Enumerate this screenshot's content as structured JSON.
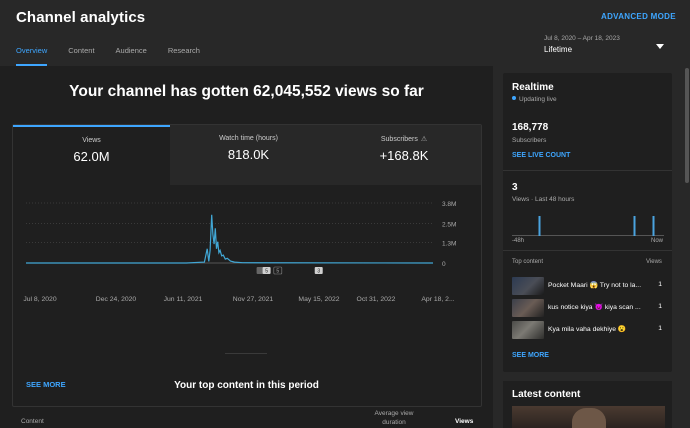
{
  "header": {
    "title": "Channel analytics",
    "advanced_mode": "ADVANCED MODE",
    "tabs": [
      {
        "label": "Overview",
        "active": true
      },
      {
        "label": "Content",
        "active": false
      },
      {
        "label": "Audience",
        "active": false
      },
      {
        "label": "Research",
        "active": false
      }
    ],
    "date_range": "Jul 8, 2020 – Apr 18, 2023",
    "period": "Lifetime"
  },
  "overview": {
    "headline": "Your channel has gotten 62,045,552 views so far",
    "metrics": [
      {
        "label": "Views",
        "value": "62.0M",
        "active": true
      },
      {
        "label": "Watch time (hours)",
        "value": "818.0K",
        "active": false
      },
      {
        "label": "Subscribers",
        "value": "+168.8K",
        "active": false,
        "warning_icon": "⚠"
      }
    ],
    "see_more": "SEE MORE",
    "top_content_title": "Your top content in this period",
    "table_headers": {
      "content": "Content",
      "avg_view_duration_line1": "Average view",
      "avg_view_duration_line2": "duration",
      "views": "Views"
    }
  },
  "chart_data": {
    "type": "line",
    "title": "",
    "x_tick_labels": [
      "Jul 8, 2020",
      "Dec 24, 2020",
      "Jun 11, 2021",
      "Nov 27, 2021",
      "May 15, 2022",
      "Oct 31, 2022",
      "Apr 18, 2..."
    ],
    "y_tick_labels": [
      "3.8M",
      "2.5M",
      "1.3M",
      "0"
    ],
    "ylim": [
      0,
      3800000
    ],
    "series": [
      {
        "name": "Views",
        "color": "#41a7d5",
        "points": [
          [
            0,
            0
          ],
          [
            400,
            0
          ],
          [
            445,
            60000
          ],
          [
            452,
            900000
          ],
          [
            456,
            100000
          ],
          [
            459,
            800000
          ],
          [
            463,
            3050000
          ],
          [
            466,
            1800000
          ],
          [
            469,
            1200000
          ],
          [
            472,
            2200000
          ],
          [
            475,
            900000
          ],
          [
            478,
            1350000
          ],
          [
            481,
            650000
          ],
          [
            484,
            800000
          ],
          [
            488,
            450000
          ],
          [
            492,
            500000
          ],
          [
            497,
            250000
          ],
          [
            502,
            300000
          ],
          [
            510,
            120000
          ],
          [
            520,
            60000
          ],
          [
            540,
            20000
          ],
          [
            1015,
            0
          ]
        ]
      }
    ],
    "markers": [
      "5",
      "5",
      "3"
    ],
    "color": "#41a7d5"
  },
  "realtime": {
    "title": "Realtime",
    "status": "Updating live",
    "subscribers_value": "168,778",
    "subscribers_label": "Subscribers",
    "see_live_count": "SEE LIVE COUNT",
    "views_value": "3",
    "views_label": "Views · Last 48 hours",
    "bars_hours": [
      39,
      9,
      3
    ],
    "axis_left": "-48h",
    "axis_right": "Now",
    "top_content_label": "Top content",
    "top_views_label": "Views",
    "items": [
      {
        "title": "Pocket Maari 😱 Try not to la...",
        "views": "1"
      },
      {
        "title": "kus notice kiya 😈 kiya scan ...",
        "views": "1"
      },
      {
        "title": "Kya mila vaha dekhiye 😮",
        "views": "1"
      }
    ],
    "see_more": "SEE MORE"
  },
  "latest_content": {
    "title": "Latest content"
  }
}
